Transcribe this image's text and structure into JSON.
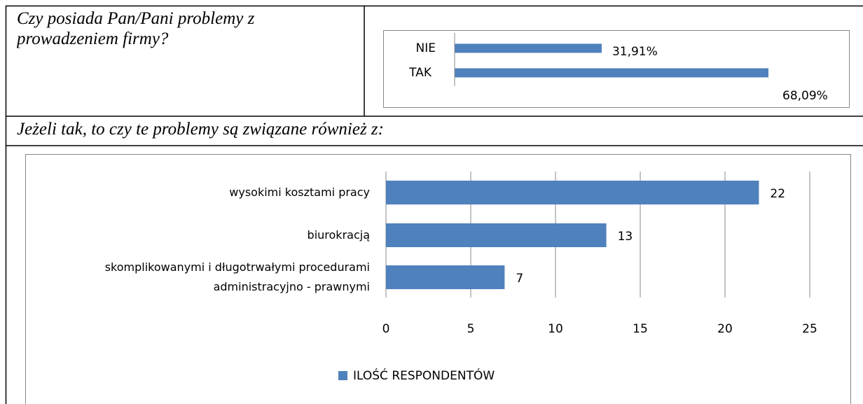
{
  "question1": "Czy posiada Pan/Pani problemy z\nprowadzeniem firmy?",
  "chart1": {
    "type": "bar",
    "orientation": "horizontal",
    "categories": [
      "NIE",
      "TAK"
    ],
    "values": [
      31.91,
      68.09
    ],
    "value_labels": [
      "31,91%",
      "68,09%"
    ],
    "color": "#4f81bd"
  },
  "question2": "Jeżeli tak, to czy te problemy są związane również z:",
  "chart_data": {
    "type": "bar",
    "orientation": "horizontal",
    "categories": [
      "wysokimi kosztami pracy",
      "biurokracją",
      "skomplikowanymi i długotrwałymi procedurami\nadministracyjno - prawnymi"
    ],
    "series": [
      {
        "name": "ILOŚĆ RESPONDENTÓW",
        "color": "#4f81bd",
        "values": [
          22,
          13,
          7
        ]
      }
    ],
    "xlim": [
      0,
      25
    ],
    "xticks": [
      0,
      5,
      10,
      15,
      20,
      25
    ],
    "grid": true,
    "legend": "bottom"
  }
}
